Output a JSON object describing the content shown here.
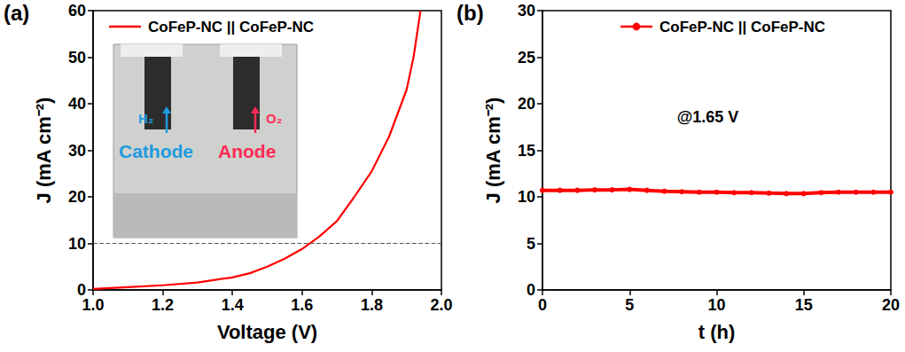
{
  "chart_data": [
    {
      "type": "line",
      "panel": "(a)",
      "x_label": "Voltage (V)",
      "y_label": "J (mA cm⁻²)",
      "x": [
        1.0,
        1.1,
        1.2,
        1.3,
        1.4,
        1.45,
        1.5,
        1.55,
        1.6,
        1.65,
        1.7,
        1.75,
        1.8,
        1.85,
        1.9,
        1.92,
        1.94
      ],
      "series": [
        {
          "name": "CoFeP-NC || CoFeP-NC",
          "color": "#ff0000",
          "line_style": "solid",
          "marker": "none",
          "values": [
            0.2,
            0.6,
            1.0,
            1.6,
            2.7,
            3.6,
            5.0,
            6.7,
            8.8,
            11.5,
            14.8,
            20.0,
            25.5,
            33.0,
            43.0,
            50.0,
            60.0
          ]
        }
      ],
      "xlim": [
        1.0,
        2.0
      ],
      "xticks": [
        {
          "value": 1.0,
          "label": "1.0"
        },
        1.2,
        1.4,
        1.6,
        1.8,
        {
          "value": 2.0,
          "label": "2.0"
        }
      ],
      "ylim": [
        0,
        60
      ],
      "yticks": [
        0,
        10,
        20,
        30,
        40,
        50,
        60
      ],
      "reference_line": 10,
      "inset_labels": [
        {
          "text": "H₂",
          "color": "#1e9be0"
        },
        {
          "text": "O₂",
          "color": "#ff2a55"
        },
        {
          "text": "Cathode",
          "color": "#1e9be0"
        },
        {
          "text": "Anode",
          "color": "#ff2a55"
        }
      ],
      "legend": "upper left",
      "grid": false
    },
    {
      "type": "line",
      "panel": "(b)",
      "x_label": "t (h)",
      "y_label": "J (mA cm⁻²)",
      "x": [
        0,
        1,
        2,
        3,
        4,
        5,
        6,
        7,
        8,
        9,
        10,
        11,
        12,
        13,
        14,
        15,
        16,
        17,
        18,
        19,
        20
      ],
      "series": [
        {
          "name": "CoFeP-NC || CoFeP-NC",
          "color": "#ff0000",
          "line_style": "solid",
          "marker": "circle",
          "values": [
            10.7,
            10.7,
            10.7,
            10.75,
            10.75,
            10.8,
            10.7,
            10.6,
            10.55,
            10.5,
            10.5,
            10.45,
            10.45,
            10.4,
            10.35,
            10.35,
            10.45,
            10.5,
            10.5,
            10.5,
            10.5
          ]
        }
      ],
      "xlim": [
        0,
        20
      ],
      "xticks": [
        0,
        5,
        10,
        15,
        20
      ],
      "ylim": [
        0,
        30
      ],
      "yticks": [
        0,
        5,
        10,
        15,
        20,
        25,
        30
      ],
      "annotations": [
        "@1.65 V"
      ],
      "legend": "upper right",
      "grid": false
    }
  ]
}
